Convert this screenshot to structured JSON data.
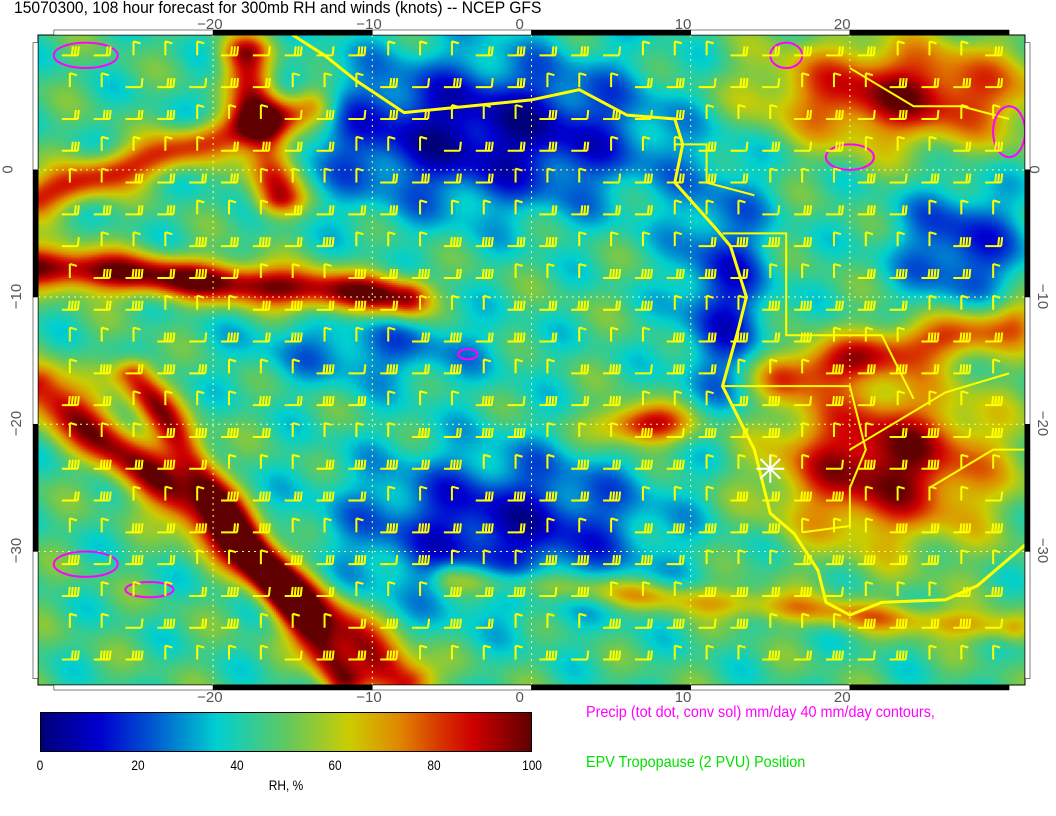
{
  "title": "15070300, 108 hour forecast for 300mb RH and winds (knots) -- NCEP GFS",
  "map": {
    "lon_range": [
      -31,
      31
    ],
    "lat_range": [
      -40.5,
      10.6
    ],
    "lon_ticks": [
      -20,
      -10,
      0,
      10,
      20
    ],
    "lat_ticks": [
      0,
      -10,
      -20,
      -30
    ],
    "lon_tick_labels": [
      "−20",
      "−10",
      "0",
      "10",
      "20"
    ],
    "lat_tick_labels": [
      "0",
      "−10",
      "−20",
      "−30"
    ],
    "coastline_color": "#ffff00",
    "barb_color": "#ffff00",
    "precip_contour_color": "#ff00ff",
    "marker": {
      "icon": "white-star-icon",
      "lon": 15,
      "lat": -23.5,
      "color": "#ffffff"
    }
  },
  "colorbar": {
    "label": "RH, %",
    "range": [
      0,
      100
    ],
    "ticks": [
      "0",
      "20",
      "40",
      "60",
      "80",
      "100"
    ]
  },
  "legend": {
    "precip": "Precip (tot dot, conv sol) mm/day 40 mm/day contours,",
    "tropopause": "EPV Tropopause (2 PVU) Position",
    "precip_color": "#ff00ff",
    "tropopause_color": "#00e000"
  }
}
